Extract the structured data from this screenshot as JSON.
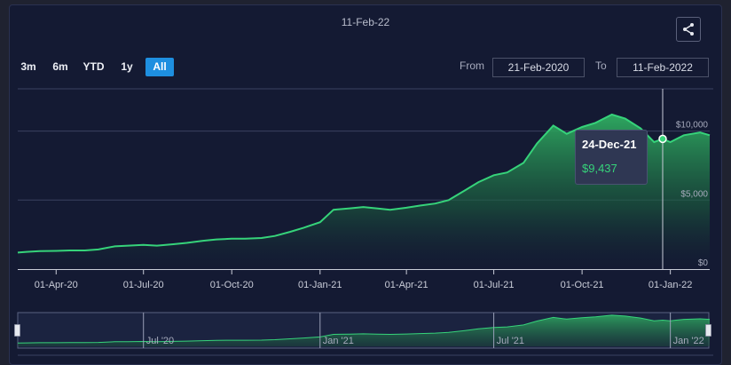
{
  "header": {
    "date": "11-Feb-22",
    "share_icon": "share-icon"
  },
  "range_buttons": [
    {
      "label": "3m",
      "active": false
    },
    {
      "label": "6m",
      "active": false
    },
    {
      "label": "YTD",
      "active": false
    },
    {
      "label": "1y",
      "active": false
    },
    {
      "label": "All",
      "active": true
    }
  ],
  "range": {
    "from_label": "From",
    "from_value": "21-Feb-2020",
    "to_label": "To",
    "to_value": "11-Feb-2022"
  },
  "colors": {
    "background": "#141a33",
    "line": "#36d37a",
    "active_button": "#1e8fe0"
  },
  "tooltip": {
    "date": "24-Dec-21",
    "value": "$9,437"
  },
  "chart_data": {
    "type": "area",
    "title": "",
    "xlabel": "",
    "ylabel": "",
    "x_ticks": [
      "01-Apr-20",
      "01-Jul-20",
      "01-Oct-20",
      "01-Jan-21",
      "01-Apr-21",
      "01-Jul-21",
      "01-Oct-21",
      "01-Jan-22"
    ],
    "y_ticks": [
      "$0",
      "$5,000",
      "$10,000"
    ],
    "ylim": [
      0,
      13000
    ],
    "grid": true,
    "series": [
      {
        "x": [
          "2020-02-21",
          "2020-03-01",
          "2020-03-15",
          "2020-04-01",
          "2020-04-15",
          "2020-05-01",
          "2020-05-15",
          "2020-06-01",
          "2020-06-15",
          "2020-07-01",
          "2020-07-15",
          "2020-08-01",
          "2020-08-15",
          "2020-09-01",
          "2020-09-15",
          "2020-10-01",
          "2020-10-15",
          "2020-11-01",
          "2020-11-15",
          "2020-12-01",
          "2020-12-15",
          "2021-01-01",
          "2021-01-15",
          "2021-02-01",
          "2021-02-15",
          "2021-03-01",
          "2021-03-15",
          "2021-04-01",
          "2021-04-15",
          "2021-05-01",
          "2021-05-15",
          "2021-06-01",
          "2021-06-15",
          "2021-07-01",
          "2021-07-15",
          "2021-08-01",
          "2021-08-15",
          "2021-09-01",
          "2021-09-15",
          "2021-10-01",
          "2021-10-15",
          "2021-11-01",
          "2021-11-15",
          "2021-12-01",
          "2021-12-15",
          "2021-12-24",
          "2022-01-01",
          "2022-01-15",
          "2022-02-01",
          "2022-02-11"
        ],
        "values": [
          1200,
          1250,
          1300,
          1320,
          1350,
          1350,
          1420,
          1650,
          1700,
          1750,
          1700,
          1800,
          1900,
          2050,
          2150,
          2200,
          2200,
          2250,
          2400,
          2700,
          3000,
          3400,
          4300,
          4400,
          4500,
          4400,
          4300,
          4450,
          4600,
          4750,
          5000,
          5700,
          6300,
          6800,
          7000,
          7700,
          9100,
          10400,
          9800,
          10300,
          10600,
          11200,
          10900,
          10200,
          9200,
          9437,
          9200,
          9700,
          9900,
          9700
        ]
      }
    ]
  },
  "navigator": {
    "labels": [
      "Jul '20",
      "Jan '21",
      "Jul '21",
      "Jan '22"
    ],
    "left_handle": "left-handle",
    "right_handle": "right-handle"
  }
}
